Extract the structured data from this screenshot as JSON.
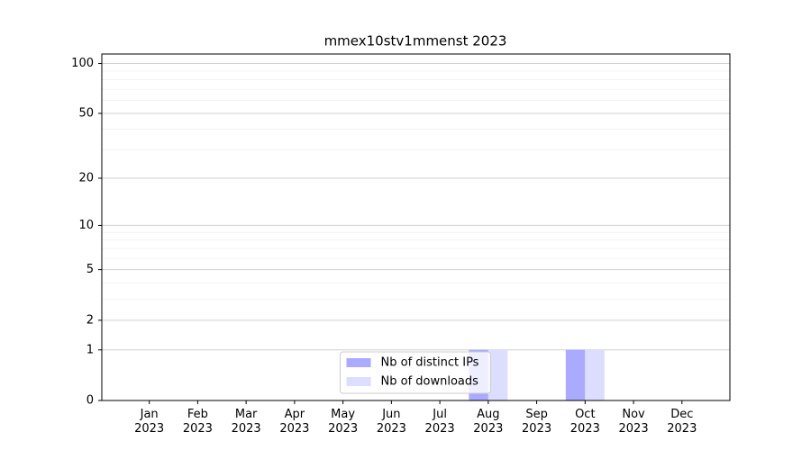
{
  "chart_data": {
    "type": "bar",
    "title": "mmex10stv1mmenst 2023",
    "categories": [
      "Jan\n2023",
      "Feb\n2023",
      "Mar\n2023",
      "Apr\n2023",
      "May\n2023",
      "Jun\n2023",
      "Jul\n2023",
      "Aug\n2023",
      "Sep\n2023",
      "Oct\n2023",
      "Nov\n2023",
      "Dec\n2023"
    ],
    "series": [
      {
        "name": "Nb of distinct IPs",
        "color": "#aaaaff",
        "values": [
          0,
          0,
          0,
          0,
          0,
          0,
          0,
          1,
          0,
          1,
          0,
          0
        ]
      },
      {
        "name": "Nb of downloads",
        "color": "#ddddff",
        "values": [
          0,
          0,
          0,
          0,
          0,
          0,
          0,
          1,
          0,
          1,
          0,
          0
        ]
      }
    ],
    "yscale": "log1p",
    "ylim": [
      0,
      114
    ],
    "yticks": [
      0,
      1,
      2,
      5,
      10,
      20,
      50,
      100
    ],
    "yminorticks": [
      3,
      4,
      6,
      7,
      8,
      9,
      30,
      40,
      60,
      70,
      80,
      90
    ],
    "grid": true,
    "legend": "lower center"
  }
}
